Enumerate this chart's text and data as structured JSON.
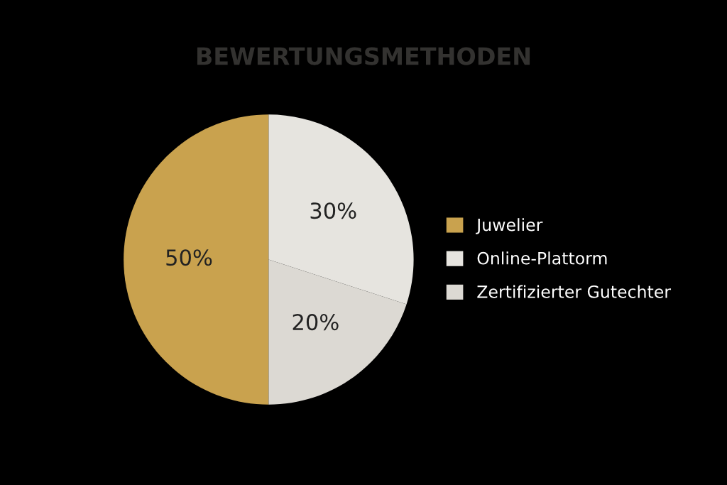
{
  "chart_data": {
    "type": "pie",
    "title": "BEWERTUNGSMETHODEN",
    "categories": [
      "Juwelier",
      "Zertifizierter Gutechter",
      "Online-Plattorm"
    ],
    "values": [
      50,
      20,
      30
    ],
    "colors": [
      "#c9a24e",
      "#dcd9d3",
      "#e6e4df"
    ],
    "value_labels": [
      "50%",
      "20%",
      "30%"
    ],
    "legend": "right"
  }
}
